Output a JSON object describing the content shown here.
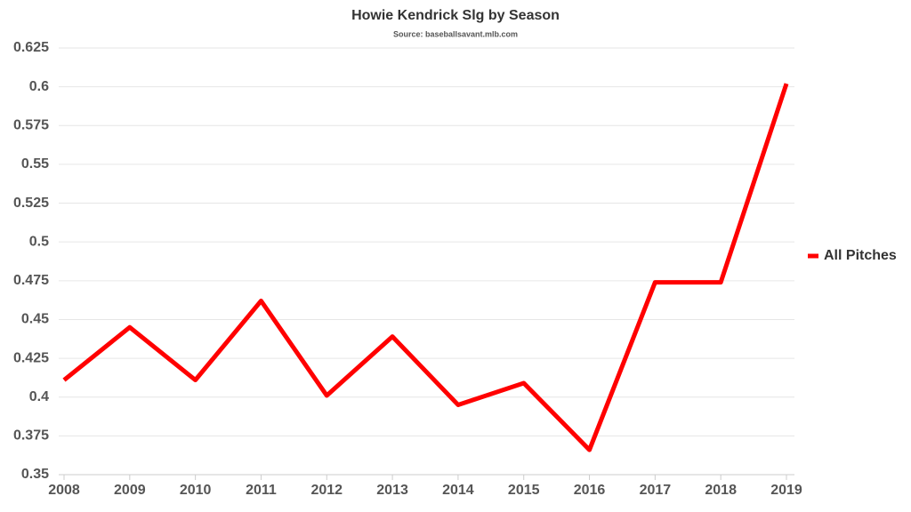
{
  "chart_data": {
    "type": "line",
    "title": "Howie Kendrick Slg by Season",
    "subtitle": "Source: baseballsavant.mlb.com",
    "categories": [
      "2008",
      "2009",
      "2010",
      "2011",
      "2012",
      "2013",
      "2014",
      "2015",
      "2016",
      "2017",
      "2018",
      "2019"
    ],
    "series": [
      {
        "name": "All Pitches",
        "color": "#ff0000",
        "values": [
          0.411,
          0.445,
          0.411,
          0.462,
          0.401,
          0.439,
          0.395,
          0.409,
          0.366,
          0.474,
          0.474,
          0.602
        ]
      }
    ],
    "ylim": [
      0.35,
      0.625
    ],
    "yticks": [
      0.35,
      0.375,
      0.4,
      0.425,
      0.45,
      0.475,
      0.5,
      0.525,
      0.55,
      0.575,
      0.6,
      0.625
    ],
    "grid": true,
    "legend": "right"
  }
}
